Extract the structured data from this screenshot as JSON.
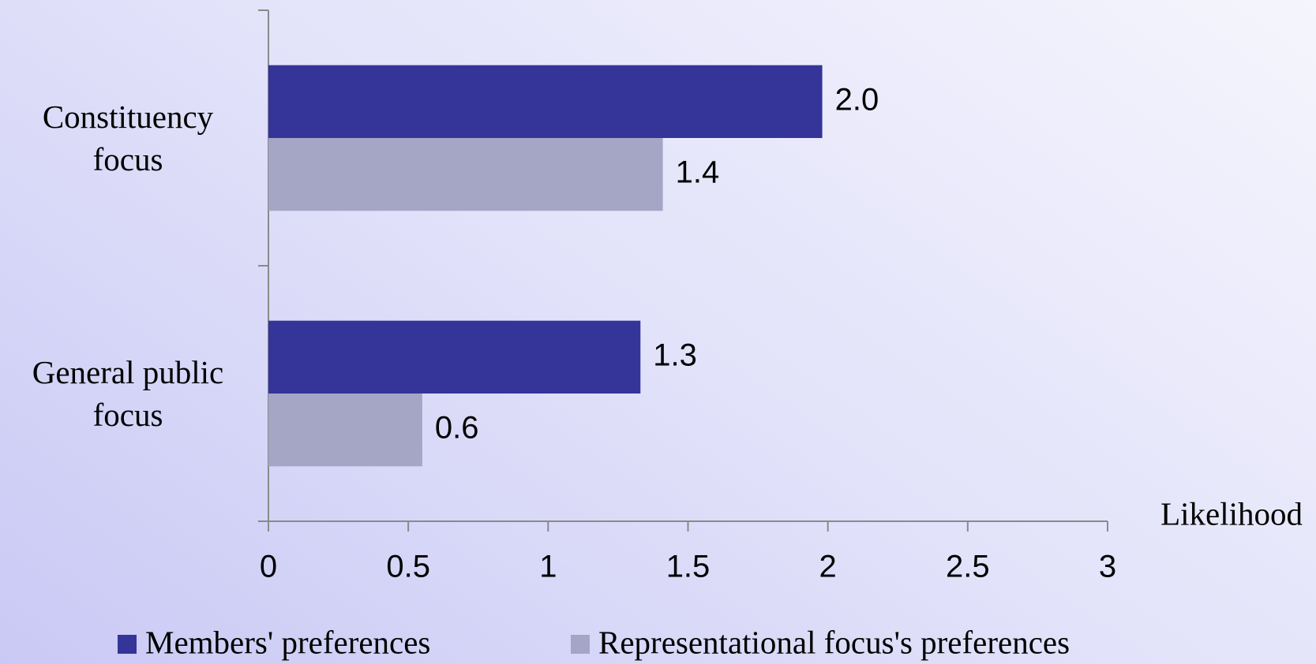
{
  "chart_data": {
    "type": "bar",
    "orientation": "horizontal",
    "categories": [
      "Constituency focus",
      "General public focus"
    ],
    "series": [
      {
        "name": "Members' preferences",
        "color": "#343499",
        "values": [
          1.98,
          1.33
        ],
        "value_labels": [
          "2.0",
          "1.3"
        ]
      },
      {
        "name": "Representational focus's preferences",
        "color": "#a5a5c5",
        "values": [
          1.41,
          0.55
        ],
        "value_labels": [
          "1.4",
          "0.6"
        ]
      }
    ],
    "xlabel": "Likelihood",
    "xlim": [
      0,
      3
    ],
    "xticks": [
      0,
      0.5,
      1,
      1.5,
      2,
      2.5,
      3
    ],
    "grid": false,
    "legend": "bottom"
  }
}
